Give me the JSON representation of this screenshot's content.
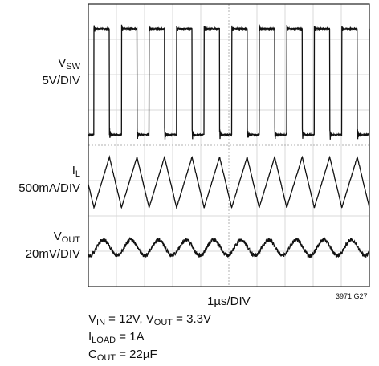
{
  "chart_data": {
    "type": "line",
    "title": "",
    "xlabel": "1µs/DIV",
    "divisions": {
      "x": 10,
      "y": 8
    },
    "grid": true,
    "figure_number": "3971 G27",
    "channels": [
      {
        "name": "V_SW",
        "label_main": "V",
        "label_sub": "SW",
        "scale": "5V/DIV",
        "waveform": "square",
        "period_div": 0.98,
        "high_div": 0.55,
        "first_rise_div": 0.2,
        "high_level_div": 7.3,
        "low_level_div": 4.3
      },
      {
        "name": "I_L",
        "label_main": "I",
        "label_sub": "L",
        "scale": "500mA/DIV",
        "waveform": "triangle",
        "period_div": 0.98,
        "center_div": 2.95,
        "amplitude_div": 0.72
      },
      {
        "name": "V_OUT",
        "label_main": "V",
        "label_sub": "OUT",
        "scale": "20mV/DIV",
        "waveform": "ripple",
        "period_div": 0.98,
        "center_div": 1.1,
        "amplitude_div": 0.22
      }
    ]
  },
  "conditions": {
    "line1_a_main": "V",
    "line1_a_sub": "IN",
    "line1_a_rest": " = 12V, ",
    "line1_b_main": "V",
    "line1_b_sub": "OUT",
    "line1_b_rest": " = 3.3V",
    "line2_main": "I",
    "line2_sub": "LOAD",
    "line2_rest": " = 1A",
    "line3_main": "C",
    "line3_sub": "OUT",
    "line3_rest": " = 22µF"
  }
}
